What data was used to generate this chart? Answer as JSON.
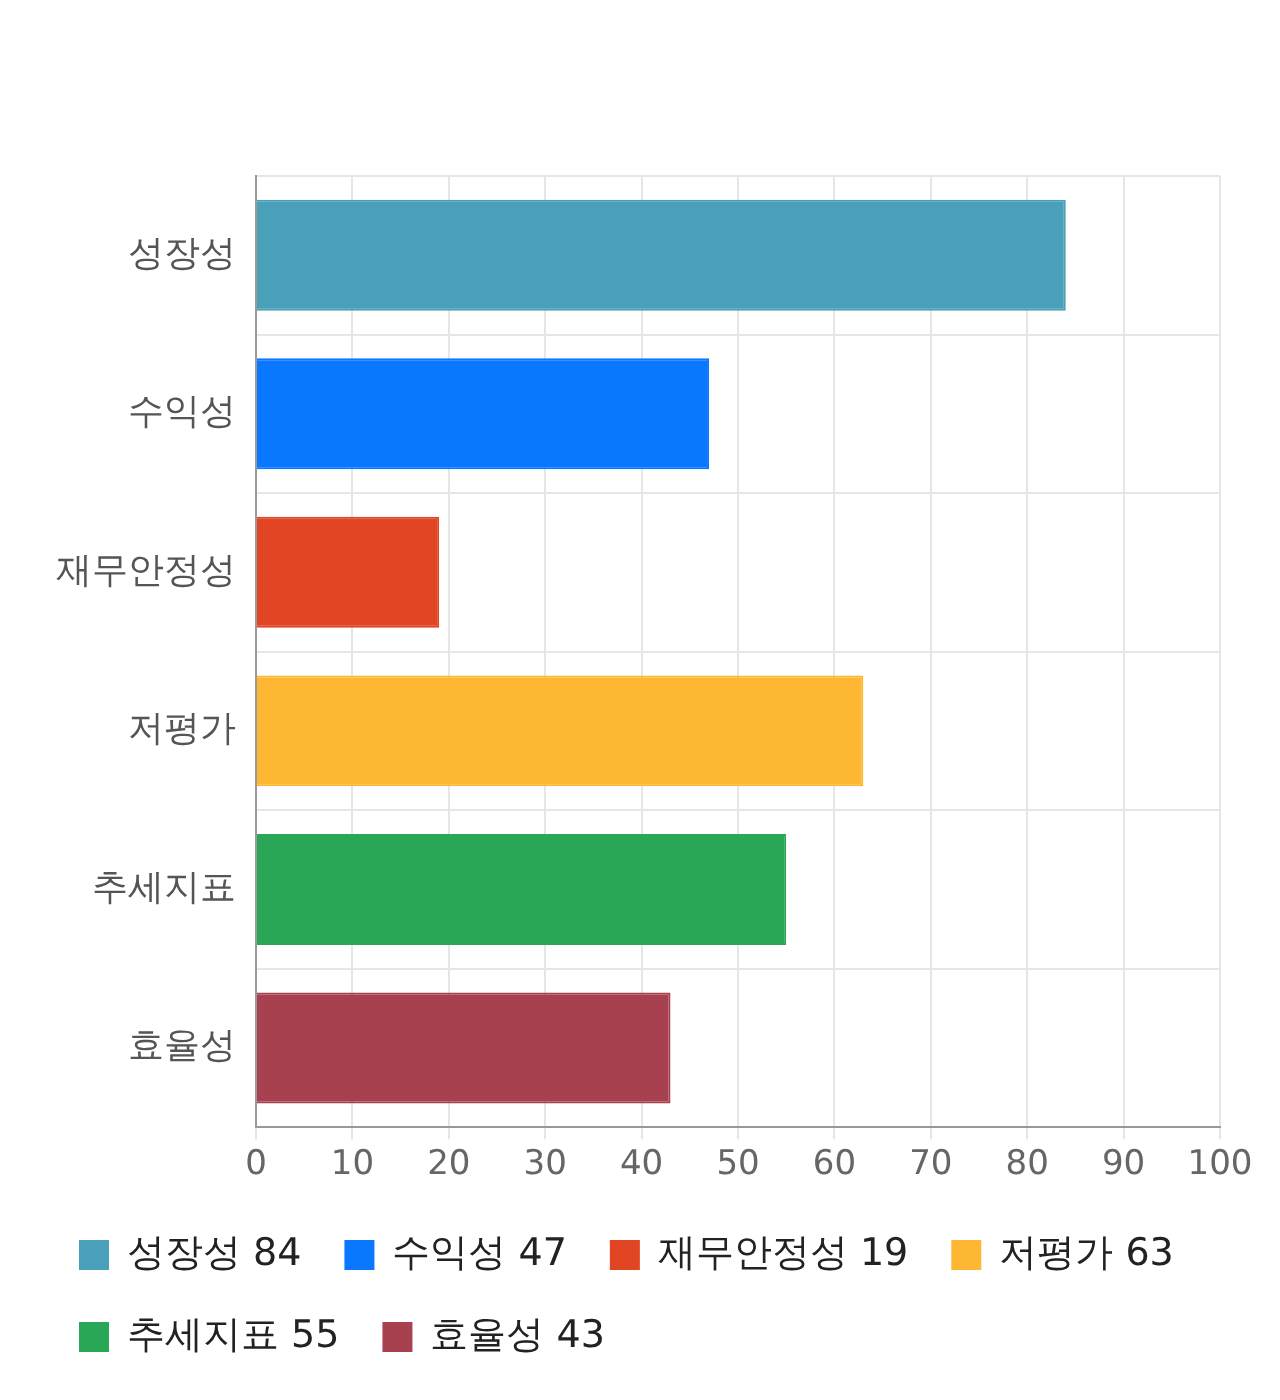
{
  "chart_data": {
    "type": "bar",
    "orientation": "horizontal",
    "stacked": true,
    "categories": [
      "성장성",
      "수익성",
      "재무안정성",
      "저평가",
      "추세지표",
      "효율성"
    ],
    "series": [
      {
        "name": "성장성 84",
        "color": "#4aa0b8",
        "values": [
          84,
          null,
          null,
          null,
          null,
          null
        ]
      },
      {
        "name": "수익성 47",
        "color": "#0a77ff",
        "values": [
          null,
          47,
          null,
          null,
          null,
          null
        ]
      },
      {
        "name": "재무안정성 19",
        "color": "#e24524",
        "values": [
          null,
          null,
          19,
          null,
          null,
          null
        ]
      },
      {
        "name": "저평가 63",
        "color": "#fdb733",
        "values": [
          null,
          null,
          null,
          63,
          null,
          null
        ]
      },
      {
        "name": "추세지표 55",
        "color": "#29a757",
        "values": [
          null,
          null,
          null,
          null,
          55,
          null
        ]
      },
      {
        "name": "효율성 43",
        "color": "#a8414f",
        "values": [
          null,
          null,
          null,
          null,
          null,
          43
        ]
      }
    ],
    "xlim": [
      0,
      100
    ],
    "xticks": [
      0,
      10,
      20,
      30,
      40,
      50,
      60,
      70,
      80,
      90,
      100
    ],
    "grid": true,
    "legend": "bottom"
  }
}
